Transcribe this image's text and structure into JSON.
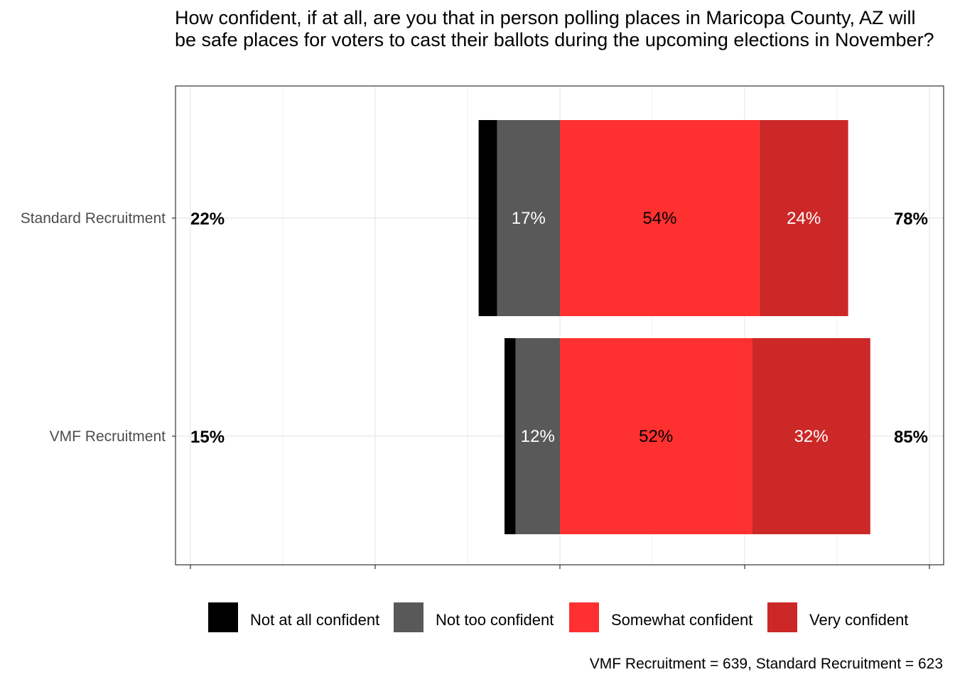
{
  "chart_data": {
    "type": "bar",
    "orientation": "horizontal",
    "stacked": "diverging",
    "title": "How confident, if at all, are you that in person polling places in Maricopa County, AZ will be safe places for voters to cast their ballots during the upcoming elections in November?",
    "caption": "VMF Recruitment = 639, Standard Recruitment = 623",
    "categories": [
      "Standard Recruitment",
      "VMF Recruitment"
    ],
    "series": [
      {
        "name": "Not at all confident",
        "color": "#000000",
        "label_color": "#ffffff",
        "values": [
          5,
          3
        ],
        "labels": [
          "",
          ""
        ]
      },
      {
        "name": "Not too confident",
        "color": "#595959",
        "label_color": "#ffffff",
        "values": [
          17,
          12
        ],
        "labels": [
          "17%",
          "12%"
        ]
      },
      {
        "name": "Somewhat confident",
        "color": "#ff3030",
        "label_color": "#000000",
        "values": [
          54,
          52
        ],
        "labels": [
          "54%",
          "52%"
        ]
      },
      {
        "name": "Very confident",
        "color": "#cc2828",
        "label_color": "#ffffff",
        "values": [
          24,
          32
        ],
        "labels": [
          "24%",
          "32%"
        ]
      }
    ],
    "negative_totals": [
      "22%",
      "15%"
    ],
    "positive_totals": [
      "78%",
      "85%"
    ],
    "xlim": [
      -100,
      100
    ],
    "x_gridlines": [
      -100,
      -75,
      -50,
      -25,
      0,
      25,
      50,
      75,
      100
    ],
    "x_ticks": [
      -100,
      -50,
      0,
      50,
      100
    ],
    "grid": true,
    "legend_position": "bottom"
  }
}
